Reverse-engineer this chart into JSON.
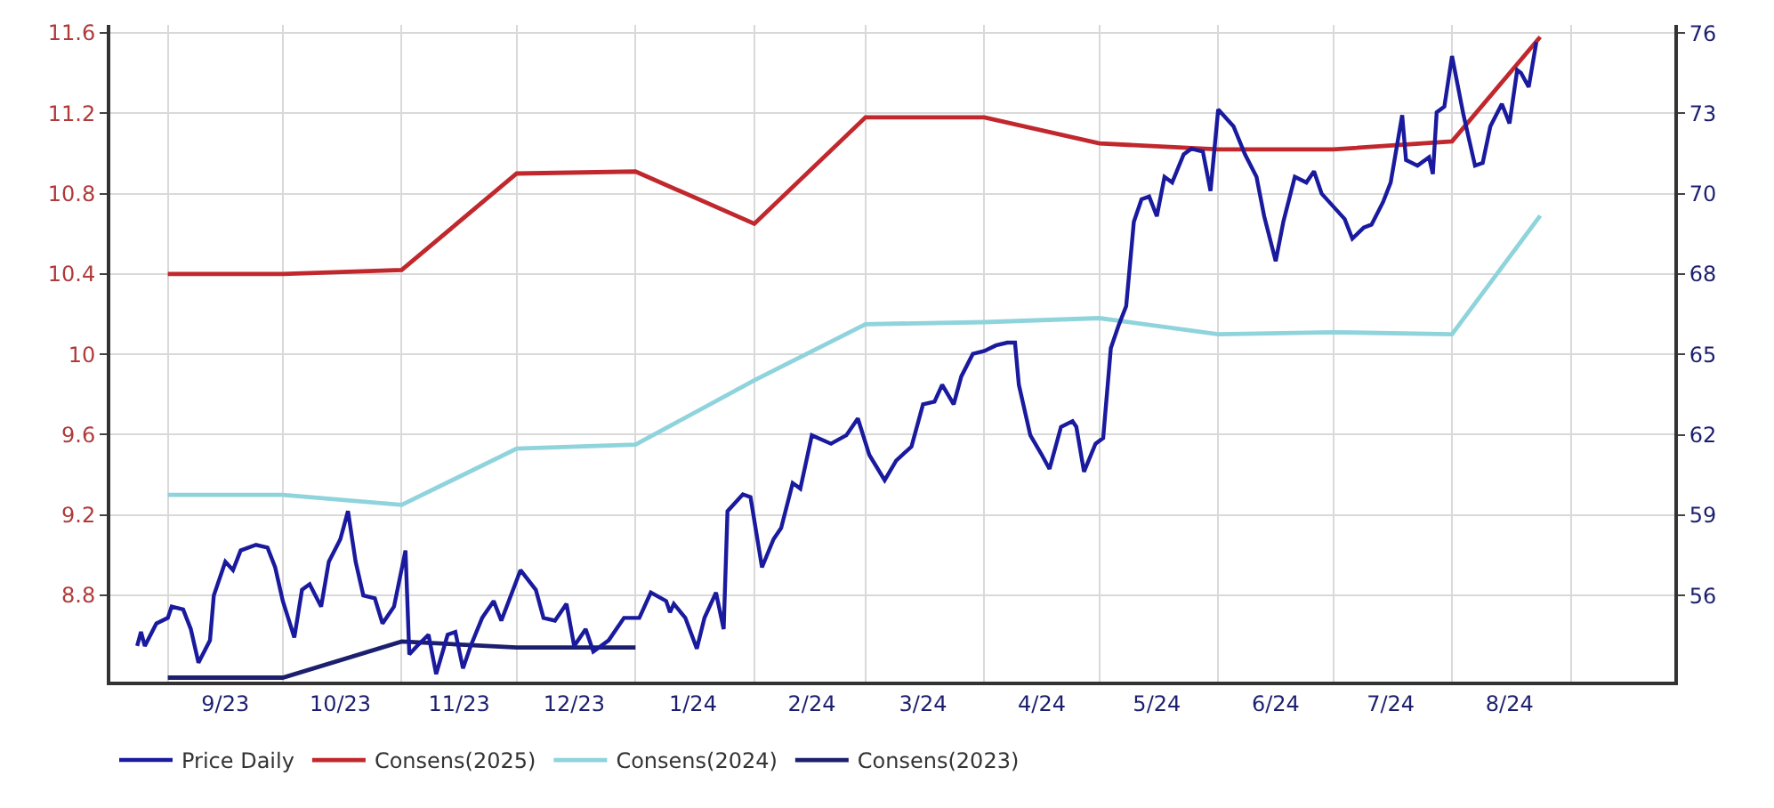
{
  "chart_data": {
    "type": "line",
    "xlim": [
      "2023-08-17",
      "2024-09-28"
    ],
    "xticks": [
      {
        "value": "2023-09-01",
        "label": null
      },
      {
        "value": "2023-09-16",
        "label": "9/23"
      },
      {
        "value": "2023-10-01",
        "label": null
      },
      {
        "value": "2023-10-16",
        "label": "10/23"
      },
      {
        "value": "2023-11-01",
        "label": null
      },
      {
        "value": "2023-11-16",
        "label": "11/23"
      },
      {
        "value": "2023-12-01",
        "label": null
      },
      {
        "value": "2023-12-16",
        "label": "12/23"
      },
      {
        "value": "2024-01-01",
        "label": null
      },
      {
        "value": "2024-01-16",
        "label": "1/24"
      },
      {
        "value": "2024-02-01",
        "label": null
      },
      {
        "value": "2024-02-16",
        "label": "2/24"
      },
      {
        "value": "2024-03-01",
        "label": null
      },
      {
        "value": "2024-03-16",
        "label": "3/24"
      },
      {
        "value": "2024-04-01",
        "label": null
      },
      {
        "value": "2024-04-16",
        "label": "4/24"
      },
      {
        "value": "2024-05-01",
        "label": null
      },
      {
        "value": "2024-05-16",
        "label": "5/24"
      },
      {
        "value": "2024-06-01",
        "label": null
      },
      {
        "value": "2024-06-16",
        "label": "6/24"
      },
      {
        "value": "2024-07-01",
        "label": null
      },
      {
        "value": "2024-07-16",
        "label": "7/24"
      },
      {
        "value": "2024-08-01",
        "label": null
      },
      {
        "value": "2024-08-16",
        "label": "8/24"
      },
      {
        "value": "2024-09-01",
        "label": null
      }
    ],
    "ylim": [
      8.37,
      11.64
    ],
    "yticks": [
      8.8,
      9.2,
      9.6,
      10.0,
      10.4,
      10.8,
      11.2,
      11.6
    ],
    "y2lim": [
      53.03,
      76.41
    ],
    "y2ticks": [
      {
        "value": 56.1,
        "label": "56"
      },
      {
        "value": 58.96,
        "label": "59"
      },
      {
        "value": 61.82,
        "label": "62"
      },
      {
        "value": 64.68,
        "label": "65"
      },
      {
        "value": 67.54,
        "label": "68"
      },
      {
        "value": 70.4,
        "label": "70"
      },
      {
        "value": 73.26,
        "label": "73"
      },
      {
        "value": 76.12,
        "label": "76"
      }
    ],
    "grid": true,
    "legend": "bottom",
    "series": [
      {
        "name": "Price Daily",
        "color": "#1a1a9e",
        "axis": "y2",
        "x": [
          "2023-08-24",
          "2023-08-25",
          "2023-08-26",
          "2023-08-29",
          "2023-09-01",
          "2023-09-02",
          "2023-09-05",
          "2023-09-07",
          "2023-09-09",
          "2023-09-12",
          "2023-09-13",
          "2023-09-16",
          "2023-09-18",
          "2023-09-20",
          "2023-09-24",
          "2023-09-27",
          "2023-09-29",
          "2023-10-01",
          "2023-10-04",
          "2023-10-06",
          "2023-10-08",
          "2023-10-11",
          "2023-10-13",
          "2023-10-16",
          "2023-10-18",
          "2023-10-20",
          "2023-10-22",
          "2023-10-25",
          "2023-10-27",
          "2023-10-30",
          "2023-11-02",
          "2023-11-03",
          "2023-11-05",
          "2023-11-08",
          "2023-11-10",
          "2023-11-13",
          "2023-11-15",
          "2023-11-17",
          "2023-11-19",
          "2023-11-22",
          "2023-11-25",
          "2023-11-27",
          "2023-12-02",
          "2023-12-06",
          "2023-12-08",
          "2023-12-11",
          "2023-12-14",
          "2023-12-16",
          "2023-12-19",
          "2023-12-21",
          "2023-12-25",
          "2023-12-29",
          "2024-01-02",
          "2024-01-05",
          "2024-01-09",
          "2024-01-10",
          "2024-01-11",
          "2024-01-14",
          "2024-01-17",
          "2024-01-19",
          "2024-01-22",
          "2024-01-24",
          "2024-01-25",
          "2024-01-29",
          "2024-01-31",
          "2024-02-03",
          "2024-02-06",
          "2024-02-08",
          "2024-02-11",
          "2024-02-13",
          "2024-02-16",
          "2024-02-21",
          "2024-02-25",
          "2024-02-28",
          "2024-03-02",
          "2024-03-06",
          "2024-03-09",
          "2024-03-13",
          "2024-03-16",
          "2024-03-19",
          "2024-03-21",
          "2024-03-24",
          "2024-03-26",
          "2024-03-29",
          "2024-04-01",
          "2024-04-04",
          "2024-04-07",
          "2024-04-09",
          "2024-04-10",
          "2024-04-13",
          "2024-04-16",
          "2024-04-18",
          "2024-04-21",
          "2024-04-24",
          "2024-04-25",
          "2024-04-27",
          "2024-04-30",
          "2024-05-02",
          "2024-05-04",
          "2024-05-06",
          "2024-05-08",
          "2024-05-10",
          "2024-05-12",
          "2024-05-14",
          "2024-05-16",
          "2024-05-18",
          "2024-05-20",
          "2024-05-23",
          "2024-05-25",
          "2024-05-28",
          "2024-05-30",
          "2024-06-01",
          "2024-06-05",
          "2024-06-08",
          "2024-06-11",
          "2024-06-13",
          "2024-06-16",
          "2024-06-18",
          "2024-06-21",
          "2024-06-24",
          "2024-06-26",
          "2024-06-28",
          "2024-07-02",
          "2024-07-04",
          "2024-07-06",
          "2024-07-09",
          "2024-07-11",
          "2024-07-14",
          "2024-07-16",
          "2024-07-19",
          "2024-07-20",
          "2024-07-23",
          "2024-07-26",
          "2024-07-27",
          "2024-07-28",
          "2024-07-30",
          "2024-08-01",
          "2024-08-04",
          "2024-08-07",
          "2024-08-09",
          "2024-08-11",
          "2024-08-14",
          "2024-08-16",
          "2024-08-18",
          "2024-08-19",
          "2024-08-21",
          "2024-08-23"
        ],
        "values": [
          54.3,
          54.8,
          54.3,
          55.1,
          55.3,
          55.7,
          55.6,
          54.9,
          53.7,
          54.5,
          56.1,
          57.3,
          57.0,
          57.7,
          57.9,
          57.8,
          57.1,
          55.9,
          54.6,
          56.3,
          56.5,
          55.7,
          57.3,
          58.1,
          59.1,
          57.3,
          56.1,
          56.0,
          55.1,
          55.7,
          57.7,
          54.0,
          54.3,
          54.7,
          53.3,
          54.7,
          54.8,
          53.5,
          54.3,
          55.3,
          55.9,
          55.2,
          57.0,
          56.3,
          55.3,
          55.2,
          55.8,
          54.3,
          54.9,
          54.1,
          54.5,
          55.3,
          55.3,
          56.2,
          55.9,
          55.5,
          55.8,
          55.3,
          54.2,
          55.3,
          56.2,
          54.9,
          59.1,
          59.7,
          59.6,
          57.1,
          58.1,
          58.5,
          60.1,
          59.9,
          61.8,
          61.5,
          61.8,
          62.4,
          61.1,
          60.2,
          60.9,
          61.4,
          62.9,
          63.0,
          63.6,
          62.9,
          63.9,
          64.7,
          64.8,
          65.0,
          65.1,
          65.1,
          63.6,
          61.8,
          61.1,
          60.6,
          62.1,
          62.3,
          62.1,
          60.5,
          61.5,
          61.7,
          64.9,
          65.7,
          66.4,
          69.4,
          70.2,
          70.3,
          69.6,
          71.0,
          70.8,
          71.8,
          72.0,
          71.9,
          70.5,
          73.4,
          72.8,
          71.8,
          71.0,
          69.6,
          68.0,
          69.4,
          71.0,
          70.8,
          71.2,
          70.4,
          69.8,
          69.5,
          68.8,
          69.2,
          69.3,
          70.1,
          70.8,
          73.2,
          71.6,
          71.4,
          71.7,
          71.1,
          73.3,
          73.5,
          75.3,
          73.2,
          71.4,
          71.5,
          72.8,
          73.6,
          72.9,
          74.8,
          74.7,
          74.2,
          75.8
        ]
      },
      {
        "name": "Consens(2025)",
        "color": "#c0282d",
        "x": [
          "2023-09-01",
          "2023-10-01",
          "2023-11-01",
          "2023-12-01",
          "2024-01-01",
          "2024-02-01",
          "2024-03-01",
          "2024-04-01",
          "2024-05-01",
          "2024-06-01",
          "2024-07-01",
          "2024-08-01",
          "2024-08-24"
        ],
        "values": [
          10.4,
          10.4,
          10.42,
          10.9,
          10.91,
          10.65,
          11.18,
          11.18,
          11.05,
          11.02,
          11.02,
          11.06,
          11.58
        ]
      },
      {
        "name": "Consens(2024)",
        "color": "#8fd3dc",
        "x": [
          "2023-09-01",
          "2023-10-01",
          "2023-11-01",
          "2023-12-01",
          "2024-01-01",
          "2024-02-01",
          "2024-03-01",
          "2024-04-01",
          "2024-05-01",
          "2024-06-01",
          "2024-07-01",
          "2024-08-01",
          "2024-08-24"
        ],
        "values": [
          9.3,
          9.3,
          9.25,
          9.53,
          9.55,
          9.87,
          10.15,
          10.16,
          10.18,
          10.1,
          10.11,
          10.1,
          10.69
        ]
      },
      {
        "name": "Consens(2023)",
        "color": "#1c1f6e",
        "x": [
          "2023-09-01",
          "2023-10-01",
          "2023-11-01",
          "2023-12-01",
          "2024-01-01"
        ],
        "values": [
          8.39,
          8.39,
          8.57,
          8.54,
          8.54
        ]
      }
    ]
  }
}
